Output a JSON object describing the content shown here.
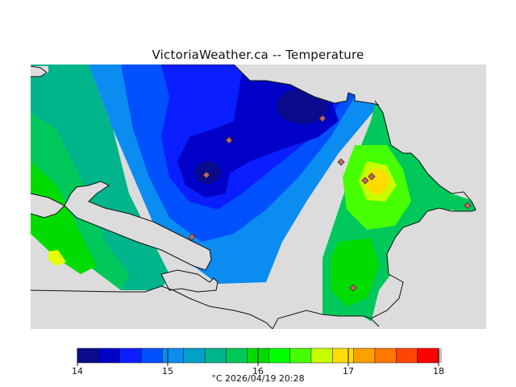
{
  "title": "VictoriaWeather.ca -- Temperature",
  "caption": "°C  2026/04/19 20:28",
  "legend": {
    "min": 14,
    "max": 18,
    "ticks": [
      "14",
      "15",
      "16",
      "17",
      "18"
    ],
    "colors": [
      "#0a0a8c",
      "#0000c8",
      "#0a1eff",
      "#0050ff",
      "#0a8cf0",
      "#00a0c8",
      "#00b48c",
      "#00c85a",
      "#00dc00",
      "#00ff00",
      "#46ff00",
      "#c8ff00",
      "#ffdc00",
      "#ffa000",
      "#ff7800",
      "#ff4600",
      "#ff0000"
    ]
  },
  "map": {
    "land_color": "#dcdcdc",
    "station_count": 9
  }
}
